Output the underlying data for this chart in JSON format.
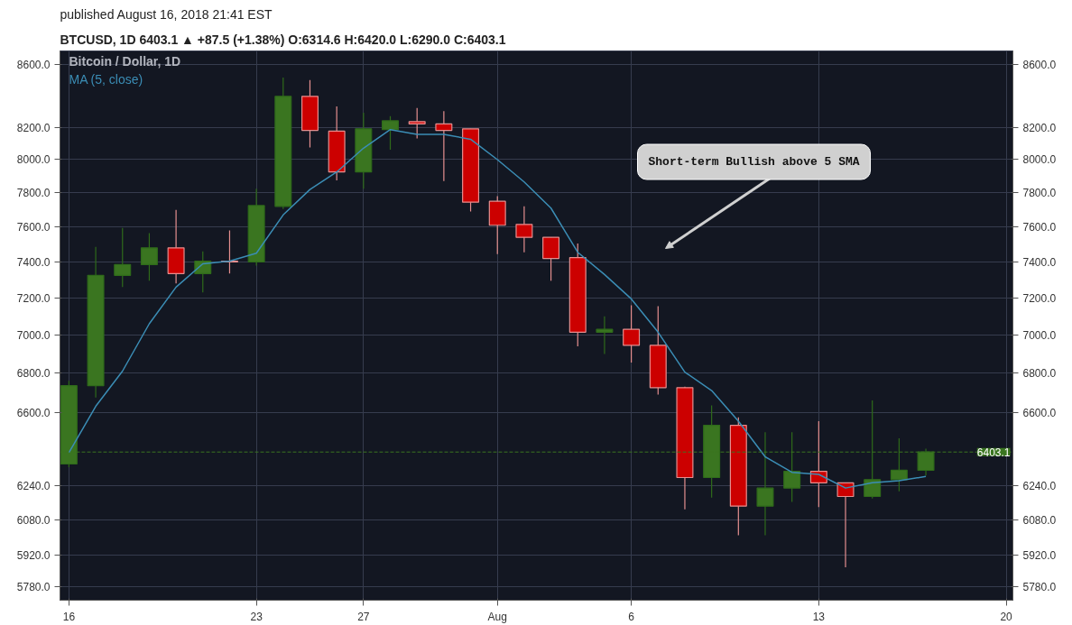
{
  "chart_data": {
    "type": "candlestick",
    "title": "Bitcoin / Dollar, 1D",
    "subtitle": "BTCUSD, 1D  6403.1 ▲ +87.5 (+1.38%)  O:6314.6  H:6420.0  L:6290.0  C:6403.1",
    "annotations": [
      "published August 16, 2018 21:41 EST",
      "Short-term Bullish above 5 SMA"
    ],
    "x": [
      "2018-07-16",
      "2018-07-17",
      "2018-07-18",
      "2018-07-19",
      "2018-07-20",
      "2018-07-21",
      "2018-07-22",
      "2018-07-23",
      "2018-07-24",
      "2018-07-25",
      "2018-07-26",
      "2018-07-27",
      "2018-07-28",
      "2018-07-29",
      "2018-07-30",
      "2018-07-31",
      "2018-08-01",
      "2018-08-02",
      "2018-08-03",
      "2018-08-04",
      "2018-08-05",
      "2018-08-06",
      "2018-08-07",
      "2018-08-08",
      "2018-08-09",
      "2018-08-10",
      "2018-08-11",
      "2018-08-12",
      "2018-08-13",
      "2018-08-14",
      "2018-08-15",
      "2018-08-16",
      "2018-08-17"
    ],
    "ohlc": [
      [
        6345,
        6760,
        6330,
        6735
      ],
      [
        6735,
        7485,
        6675,
        7325
      ],
      [
        7325,
        7595,
        7260,
        7385
      ],
      [
        7385,
        7565,
        7295,
        7480
      ],
      [
        7480,
        7700,
        7280,
        7335
      ],
      [
        7335,
        7460,
        7230,
        7405
      ],
      [
        7405,
        7580,
        7335,
        7400
      ],
      [
        7400,
        7825,
        7380,
        7725
      ],
      [
        7720,
        8515,
        7705,
        8395
      ],
      [
        8395,
        8500,
        8075,
        8180
      ],
      [
        8175,
        8330,
        7875,
        7925
      ],
      [
        7925,
        8290,
        7825,
        8190
      ],
      [
        8185,
        8270,
        8060,
        8240
      ],
      [
        8235,
        8320,
        8130,
        8220
      ],
      [
        8220,
        8300,
        7870,
        8180
      ],
      [
        8190,
        8190,
        7690,
        7745
      ],
      [
        7750,
        7780,
        7445,
        7610
      ],
      [
        7615,
        7720,
        7455,
        7540
      ],
      [
        7540,
        7540,
        7295,
        7420
      ],
      [
        7425,
        7505,
        6940,
        7015
      ],
      [
        7015,
        7100,
        6900,
        7030
      ],
      [
        7030,
        7160,
        6855,
        6945
      ],
      [
        6945,
        7155,
        6690,
        6725
      ],
      [
        6725,
        6730,
        6130,
        6280
      ],
      [
        6280,
        6635,
        6185,
        6535
      ],
      [
        6535,
        6575,
        6010,
        6145
      ],
      [
        6145,
        6500,
        6010,
        6230
      ],
      [
        6230,
        6500,
        6165,
        6310
      ],
      [
        6310,
        6555,
        6140,
        6255
      ],
      [
        6255,
        6255,
        5865,
        6190
      ],
      [
        6190,
        6660,
        6180,
        6270
      ],
      [
        6270,
        6470,
        6215,
        6315
      ],
      [
        6314.6,
        6420.0,
        6290.0,
        6403.1
      ]
    ],
    "colors": [
      "#3a7520",
      "#3a7520",
      "#3a7520",
      "#3a7520",
      "#cc0000",
      "#3a7520",
      "#cc0000",
      "#3a7520",
      "#3a7520",
      "#cc0000",
      "#cc0000",
      "#3a7520",
      "#3a7520",
      "#cc0000",
      "#cc0000",
      "#cc0000",
      "#cc0000",
      "#cc0000",
      "#cc0000",
      "#cc0000",
      "#3a7520",
      "#cc0000",
      "#cc0000",
      "#cc0000",
      "#3a7520",
      "#cc0000",
      "#3a7520",
      "#3a7520",
      "#cc0000",
      "#cc0000",
      "#3a7520",
      "#3a7520",
      "#3a7520"
    ],
    "series": [
      {
        "name": "MA (5, close)",
        "type": "line",
        "color": "#3b8db5",
        "values": [
          6400,
          6630,
          6810,
          7060,
          7260,
          7390,
          7405,
          7450,
          7670,
          7820,
          7925,
          8070,
          8185,
          8155,
          8155,
          8125,
          8000,
          7865,
          7710,
          7455,
          7330,
          7195,
          7015,
          6805,
          6710,
          6555,
          6380,
          6305,
          6295,
          6230,
          6255,
          6265,
          6285
        ]
      }
    ],
    "ylim": [
      5720,
      8690
    ],
    "yticks": [
      {
        "value": 5780,
        "label": "5780.0"
      },
      {
        "value": 5920,
        "label": "5920.0"
      },
      {
        "value": 6080,
        "label": "6080.0"
      },
      {
        "value": 6240,
        "label": "6240.0"
      },
      {
        "value": 6600,
        "label": "6600.0"
      },
      {
        "value": 6800,
        "label": "6800.0"
      },
      {
        "value": 7000,
        "label": "7000.0"
      },
      {
        "value": 7200,
        "label": "7200.0"
      },
      {
        "value": 7400,
        "label": "7400.0"
      },
      {
        "value": 7600,
        "label": "7600.0"
      },
      {
        "value": 7800,
        "label": "7800.0"
      },
      {
        "value": 8000,
        "label": "8000.0"
      },
      {
        "value": 8200,
        "label": "8200.0"
      },
      {
        "value": 8600,
        "label": "8600.0"
      }
    ],
    "xlim": [
      "2018-07-15T16:00",
      "2018-08-20T06:00"
    ],
    "xticks": [
      {
        "value": "2018-07-16",
        "label": "16"
      },
      {
        "value": "2018-07-23",
        "label": "23"
      },
      {
        "value": "2018-07-27",
        "label": "27"
      },
      {
        "value": "2018-08-01",
        "label": "Aug"
      },
      {
        "value": "2018-08-06",
        "label": "6"
      },
      {
        "value": "2018-08-13",
        "label": "13"
      },
      {
        "value": "2018-08-20",
        "label": "20"
      }
    ],
    "log": true,
    "grid": true,
    "legend": false,
    "ref_lines": [
      {
        "axis": "y",
        "value": 6403.1,
        "label": "6403.1",
        "color": "#3a7520",
        "line_style": "dashed"
      }
    ]
  }
}
